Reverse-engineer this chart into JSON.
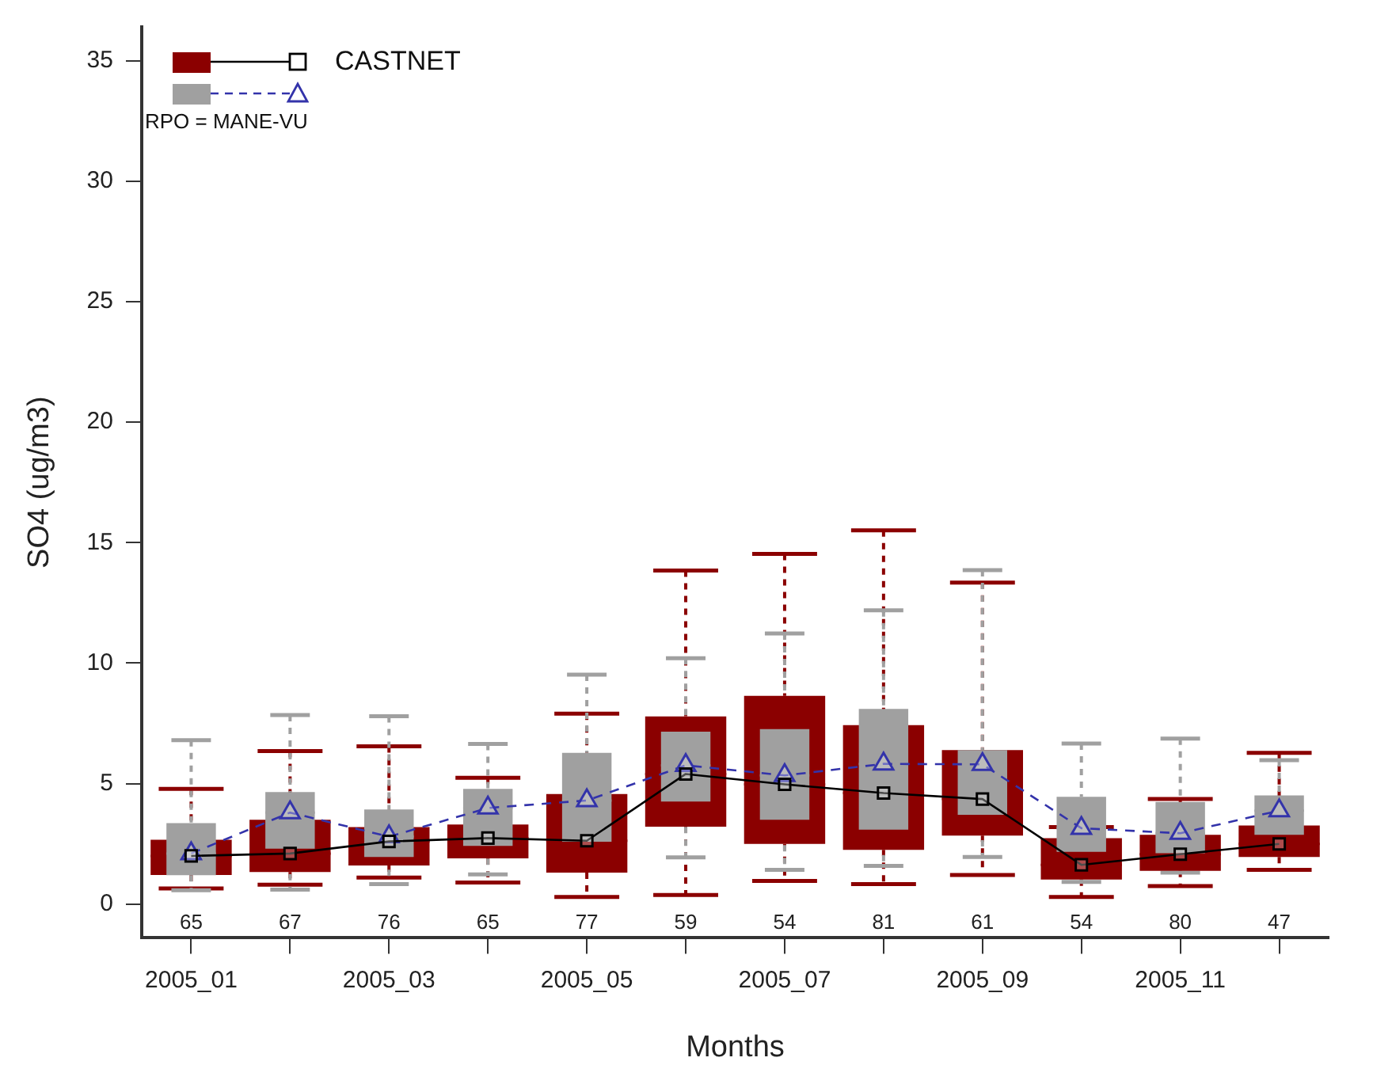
{
  "chart_data": {
    "type": "box",
    "xlabel": "Months",
    "ylabel": "SO4 (ug/m3)",
    "categories": [
      "2005_01",
      null,
      "2005_03",
      null,
      "2005_05",
      null,
      "2005_07",
      null,
      "2005_09",
      null,
      "2005_11",
      null
    ],
    "ylim": [
      -1.4,
      36.4
    ],
    "yticks": [
      0,
      5,
      10,
      15,
      20,
      25,
      30,
      35
    ],
    "legend": "top left",
    "annotations": [
      "RPO = MANE-VU",
      "65",
      "67",
      "76",
      "65",
      "77",
      "59",
      "54",
      "81",
      "61",
      "54",
      "80",
      "47"
    ],
    "series": [
      {
        "name": "CASTNET",
        "color": "#8b0000",
        "boxes": [
          {
            "low": 0.65,
            "q1": 1.21,
            "median": 2.0,
            "q3": 2.67,
            "high": 4.78
          },
          {
            "low": 0.81,
            "q1": 1.33,
            "median": 2.1,
            "q3": 3.5,
            "high": 6.35
          },
          {
            "low": 1.1,
            "q1": 1.6,
            "median": 2.6,
            "q3": 3.2,
            "high": 6.55
          },
          {
            "low": 0.9,
            "q1": 1.9,
            "median": 2.74,
            "q3": 3.3,
            "high": 5.24
          },
          {
            "low": 0.3,
            "q1": 1.31,
            "median": 2.63,
            "q3": 4.57,
            "high": 7.9
          },
          {
            "low": 0.38,
            "q1": 3.21,
            "median": 5.4,
            "q3": 7.79,
            "high": 13.84
          },
          {
            "low": 0.96,
            "q1": 2.5,
            "median": 4.97,
            "q3": 8.64,
            "high": 14.53
          },
          {
            "low": 0.83,
            "q1": 2.25,
            "median": 4.61,
            "q3": 7.43,
            "high": 15.51
          },
          {
            "low": 1.21,
            "q1": 2.84,
            "median": 4.36,
            "q3": 6.39,
            "high": 13.34
          },
          {
            "low": 0.3,
            "q1": 1.02,
            "median": 1.63,
            "q3": 2.74,
            "high": 3.2
          },
          {
            "low": 0.75,
            "q1": 1.38,
            "median": 2.07,
            "q3": 2.88,
            "high": 4.36
          },
          {
            "low": 1.42,
            "q1": 1.96,
            "median": 2.5,
            "q3": 3.26,
            "high": 6.28
          }
        ]
      },
      {
        "color": "#a0a0a0",
        "boxes": [
          {
            "low": 0.58,
            "q1": 1.2,
            "median": 2.1,
            "q3": 3.36,
            "high": 6.8
          },
          {
            "low": 0.6,
            "q1": 2.3,
            "median": 3.8,
            "q3": 4.65,
            "high": 7.85
          },
          {
            "low": 0.83,
            "q1": 1.96,
            "median": 2.8,
            "q3": 3.93,
            "high": 7.8
          },
          {
            "low": 1.23,
            "q1": 2.42,
            "median": 3.99,
            "q3": 4.78,
            "high": 6.65
          },
          {
            "low": 1.9,
            "q1": 2.59,
            "median": 4.3,
            "q3": 6.28,
            "high": 9.52
          },
          {
            "low": 1.94,
            "q1": 4.26,
            "median": 5.76,
            "q3": 7.16,
            "high": 10.2
          },
          {
            "low": 1.42,
            "q1": 3.5,
            "median": 5.34,
            "q3": 7.26,
            "high": 11.23
          },
          {
            "low": 1.59,
            "q1": 3.09,
            "median": 5.82,
            "q3": 8.1,
            "high": 12.19
          },
          {
            "low": 1.96,
            "q1": 3.71,
            "median": 5.8,
            "q3": 6.39,
            "high": 13.86
          },
          {
            "low": 0.92,
            "q1": 2.17,
            "median": 3.15,
            "q3": 4.45,
            "high": 6.66
          },
          {
            "low": 1.31,
            "q1": 2.11,
            "median": 2.94,
            "q3": 4.24,
            "high": 6.87
          },
          {
            "low": 2.1,
            "q1": 2.88,
            "median": 3.88,
            "q3": 4.51,
            "high": 5.97
          }
        ]
      },
      {
        "type": "line",
        "color": "#000000",
        "marker": "square",
        "line_style": "solid",
        "values": [
          2.0,
          2.1,
          2.6,
          2.74,
          2.63,
          5.4,
          4.97,
          4.61,
          4.36,
          1.63,
          2.07,
          2.5
        ]
      },
      {
        "type": "line",
        "color": "#3333aa",
        "marker": "triangle",
        "line_style": "dashed",
        "values": [
          2.1,
          3.8,
          2.8,
          3.99,
          4.3,
          5.76,
          5.34,
          5.82,
          5.8,
          3.15,
          2.94,
          3.88
        ]
      }
    ]
  }
}
